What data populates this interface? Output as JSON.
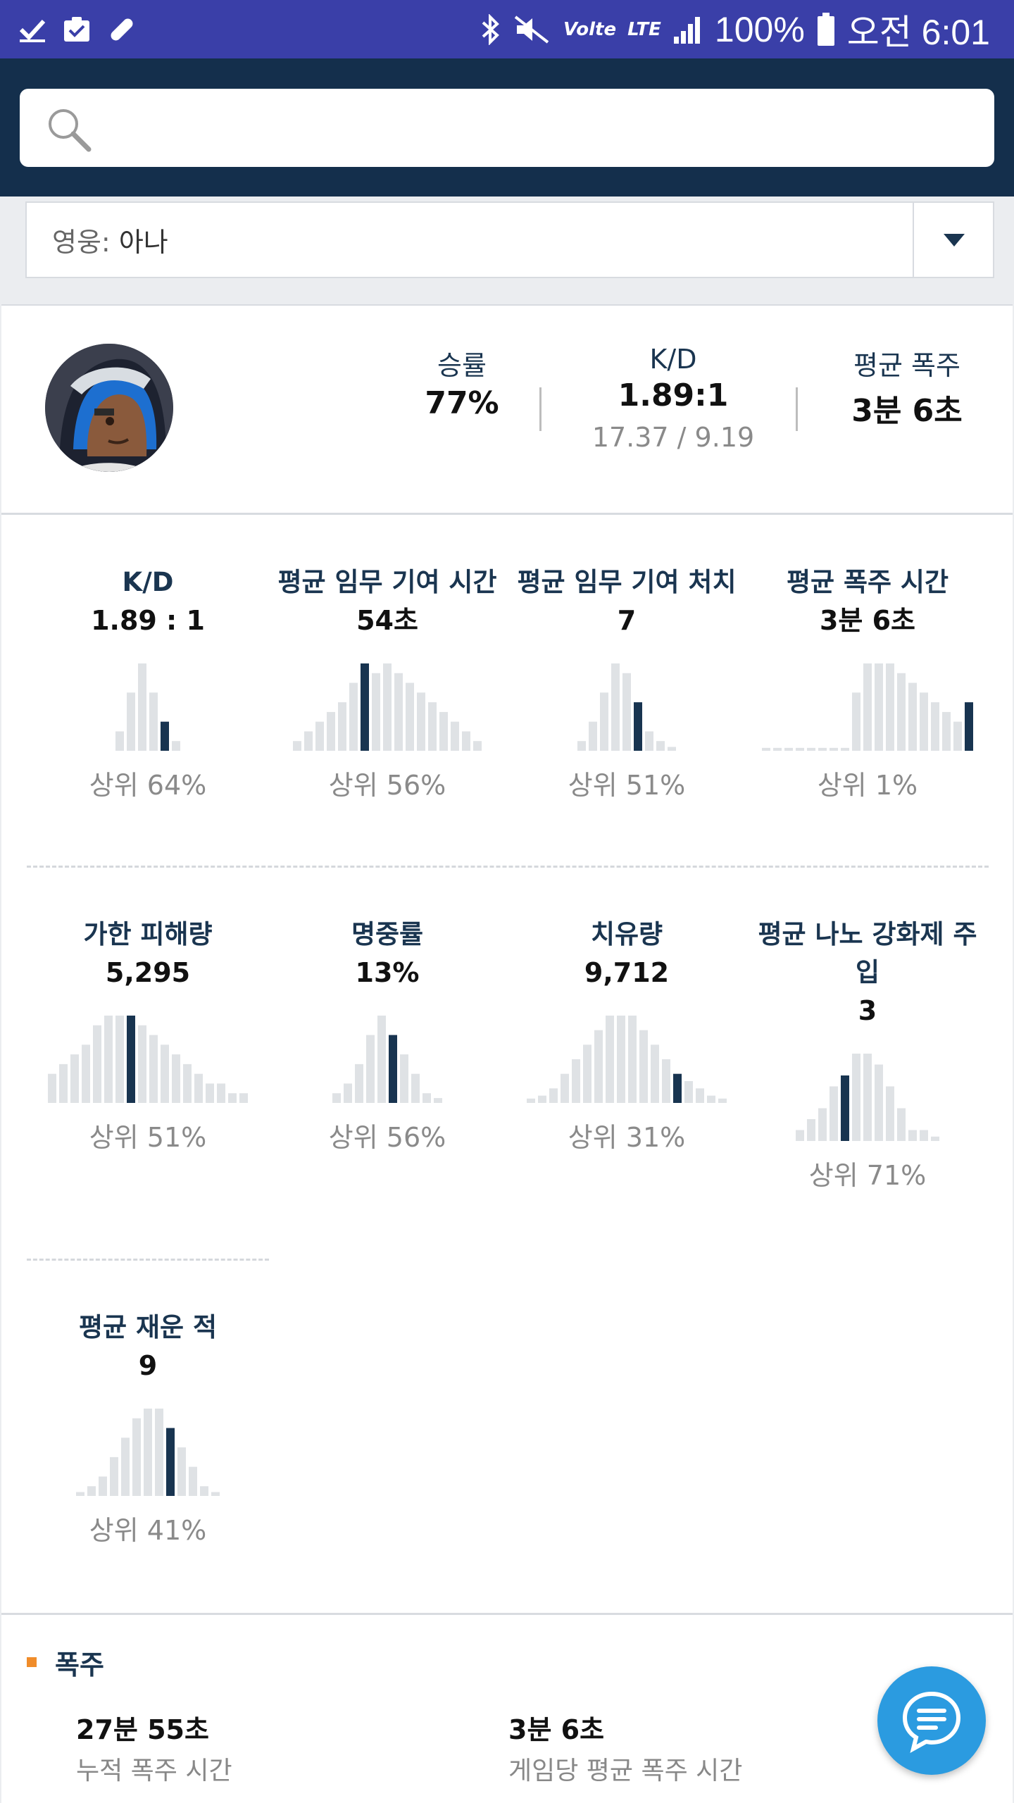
{
  "status_bar": {
    "battery": "100%",
    "time": "오전 6:01",
    "network": "LTE",
    "volte": "Volte"
  },
  "search": {
    "placeholder": ""
  },
  "hero_selector": {
    "key": "영웅:",
    "value": "아나"
  },
  "summary": {
    "win_rate": {
      "label": "승률",
      "value": "77%"
    },
    "kd": {
      "label": "K/D",
      "value": "1.89:1",
      "sub": "17.37 / 9.19"
    },
    "avg_fire": {
      "label": "평균 폭주",
      "value": "3분 6초"
    }
  },
  "stats": [
    {
      "label": "K/D",
      "value": "1.89 : 1",
      "percentile": "상위 64%",
      "histogram": [
        2,
        6,
        9,
        6,
        3,
        1
      ],
      "highlight": 4
    },
    {
      "label": "평균 임무 기여 시간",
      "value": "54초",
      "percentile": "상위 56%",
      "histogram": [
        1,
        2,
        3,
        4,
        5,
        7,
        9,
        8,
        9,
        8,
        7,
        6,
        5,
        4,
        3,
        2,
        1
      ],
      "highlight": 6
    },
    {
      "label": "평균 임무 기여 처치",
      "value": "7",
      "percentile": "상위 51%",
      "histogram": [
        1,
        3,
        6,
        9,
        8,
        5,
        2,
        1,
        0.4
      ],
      "highlight": 5
    },
    {
      "label": "평균 폭주 시간",
      "value": "3분 6초",
      "percentile": "상위 1%",
      "histogram": [
        0.3,
        0.3,
        0.3,
        0.3,
        0.3,
        0.3,
        0.3,
        0.3,
        6,
        9,
        9,
        9,
        8,
        7,
        6,
        5,
        4,
        3,
        5
      ],
      "highlight": 18
    },
    {
      "label": "가한 피해량",
      "value": "5,295",
      "percentile": "상위 51%",
      "histogram": [
        3,
        4,
        5,
        6,
        8,
        9,
        9,
        9,
        8,
        7,
        6,
        5,
        4,
        3,
        2,
        2,
        1,
        1
      ],
      "highlight": 7
    },
    {
      "label": "명중률",
      "value": "13%",
      "percentile": "상위 56%",
      "histogram": [
        1,
        2,
        4,
        7,
        9,
        7,
        5,
        3,
        1,
        0.5
      ],
      "highlight": 5
    },
    {
      "label": "치유량",
      "value": "9,712",
      "percentile": "상위 31%",
      "histogram": [
        0.3,
        0.5,
        1,
        2,
        3,
        4,
        5,
        6,
        6,
        6,
        5,
        4,
        3,
        2,
        1.5,
        1,
        0.5,
        0.3
      ],
      "highlight": 13
    },
    {
      "label": "평균 나노 강화제 주입",
      "value": "3",
      "percentile": "상위 71%",
      "histogram": [
        1,
        2,
        3,
        5,
        6,
        8,
        8,
        7,
        5,
        3,
        1,
        1,
        0.4
      ],
      "highlight": 4
    },
    {
      "label": "평균 재운 적",
      "value": "9",
      "percentile": "상위 41%",
      "histogram": [
        0.4,
        1,
        2,
        4,
        6,
        8,
        9,
        9,
        7,
        5,
        3,
        1,
        0.4
      ],
      "highlight": 8
    }
  ],
  "bottom": {
    "title": "폭주",
    "left": {
      "value": "27분 55초",
      "caption": "누적 폭주 시간"
    },
    "right": {
      "value": "3분 6초",
      "caption": "게임당 평균 폭주 시간"
    }
  },
  "colors": {
    "header": "#142f4c",
    "status_bar": "#3a3fa8",
    "accent": "#f08c2a",
    "bar": "#dfe2e5",
    "bar_highlight": "#183450",
    "fab": "#2b9be0"
  }
}
